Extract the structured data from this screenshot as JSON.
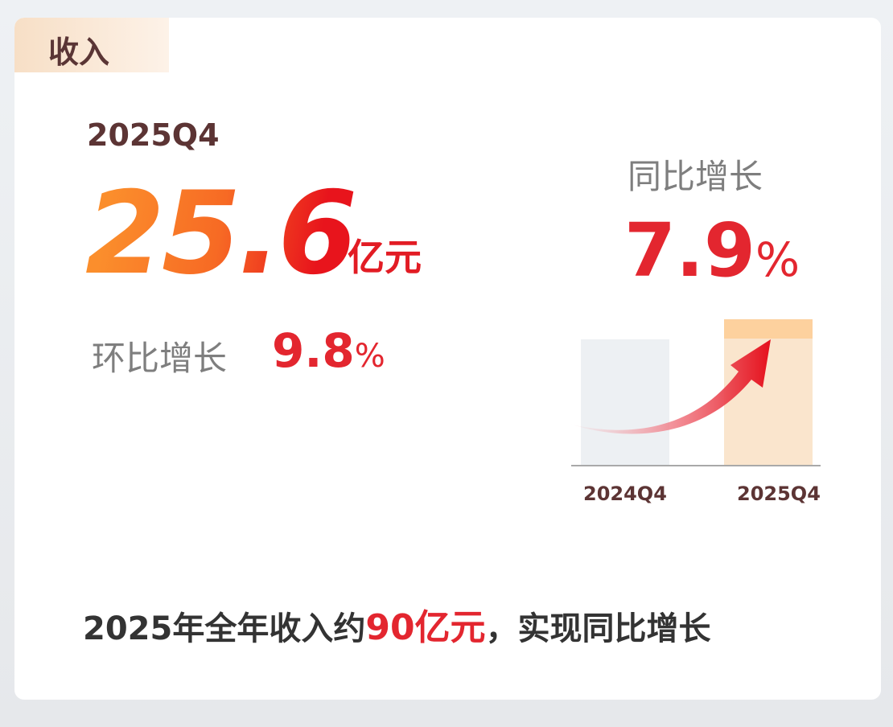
{
  "tab": {
    "label": "收入"
  },
  "quarter": {
    "period": "2025Q4",
    "revenue_value": "25.6",
    "revenue_unit": "亿元",
    "qoq_label": "环比增长",
    "qoq_value": "9.8",
    "qoq_unit": "%"
  },
  "yoy": {
    "label": "同比增长",
    "value": "7.9",
    "unit": "%",
    "bar_labels": [
      "2024Q4",
      "2025Q4"
    ]
  },
  "footer": {
    "prefix": "2025年全年收入约",
    "highlight": "90亿元",
    "suffix": "，实现同比增长"
  },
  "colors": {
    "accent_red": "#e3262f",
    "accent_orange": "#fb8e2c",
    "title_brown": "#5c3434",
    "bar_prev": "#edf0f3",
    "bar_curr": "#fae5cd"
  }
}
